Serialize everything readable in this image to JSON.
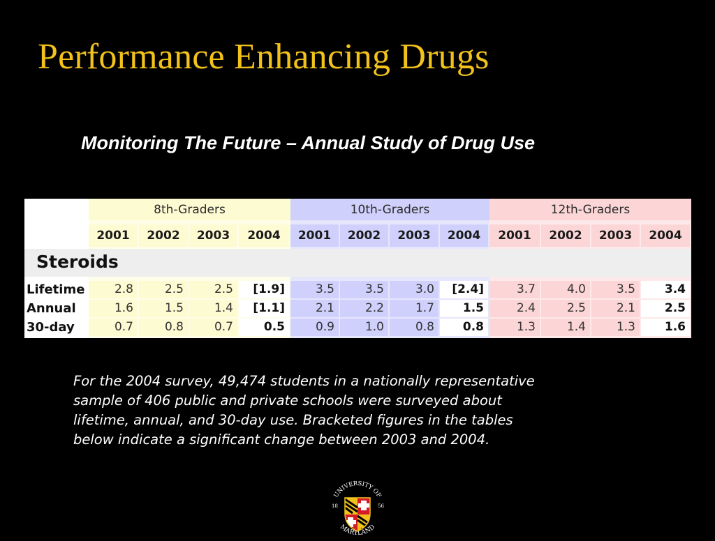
{
  "title": "Performance Enhancing Drugs",
  "subtitle": "Monitoring The Future – Annual Study of Drug Use",
  "table": {
    "groups": [
      "8th-Graders",
      "10th-Graders",
      "12th-Graders"
    ],
    "group_colors": [
      "#fdfbd2",
      "#cfd0fb",
      "#fcd6d6"
    ],
    "group_colors_light": [
      "#fefee8",
      "#e6e6fd",
      "#fde9e9"
    ],
    "years": [
      "2001",
      "2002",
      "2003",
      "2004"
    ],
    "section": "Steroids",
    "rows": [
      {
        "label": "Lifetime",
        "values": [
          "2.8",
          "2.5",
          "2.5",
          "[1.9]",
          "3.5",
          "3.5",
          "3.0",
          "[2.4]",
          "3.7",
          "4.0",
          "3.5",
          "3.4"
        ]
      },
      {
        "label": "Annual",
        "values": [
          "1.6",
          "1.5",
          "1.4",
          "[1.1]",
          "2.1",
          "2.2",
          "1.7",
          "1.5",
          "2.4",
          "2.5",
          "2.1",
          "2.5"
        ]
      },
      {
        "label": "30-day",
        "values": [
          "0.7",
          "0.8",
          "0.7",
          "0.5",
          "0.9",
          "1.0",
          "0.8",
          "0.8",
          "1.3",
          "1.4",
          "1.3",
          "1.6"
        ]
      }
    ]
  },
  "body_lines": [
    "For the 2004 survey, 49,474 students in a nationally representative",
    "sample of 406 public and private schools were surveyed about",
    "lifetime, annual, and 30-day use. Bracketed figures in the tables",
    "below indicate a significant change between 2003 and 2004."
  ],
  "logo": {
    "ring_text_top": "UNIVERSITY OF",
    "ring_text_bottom": "MARYLAND",
    "year_left": "18",
    "year_right": "56",
    "colors": {
      "gold": "#f2c21b",
      "red": "#d51b2a",
      "black": "#000000",
      "white": "#ffffff"
    }
  }
}
